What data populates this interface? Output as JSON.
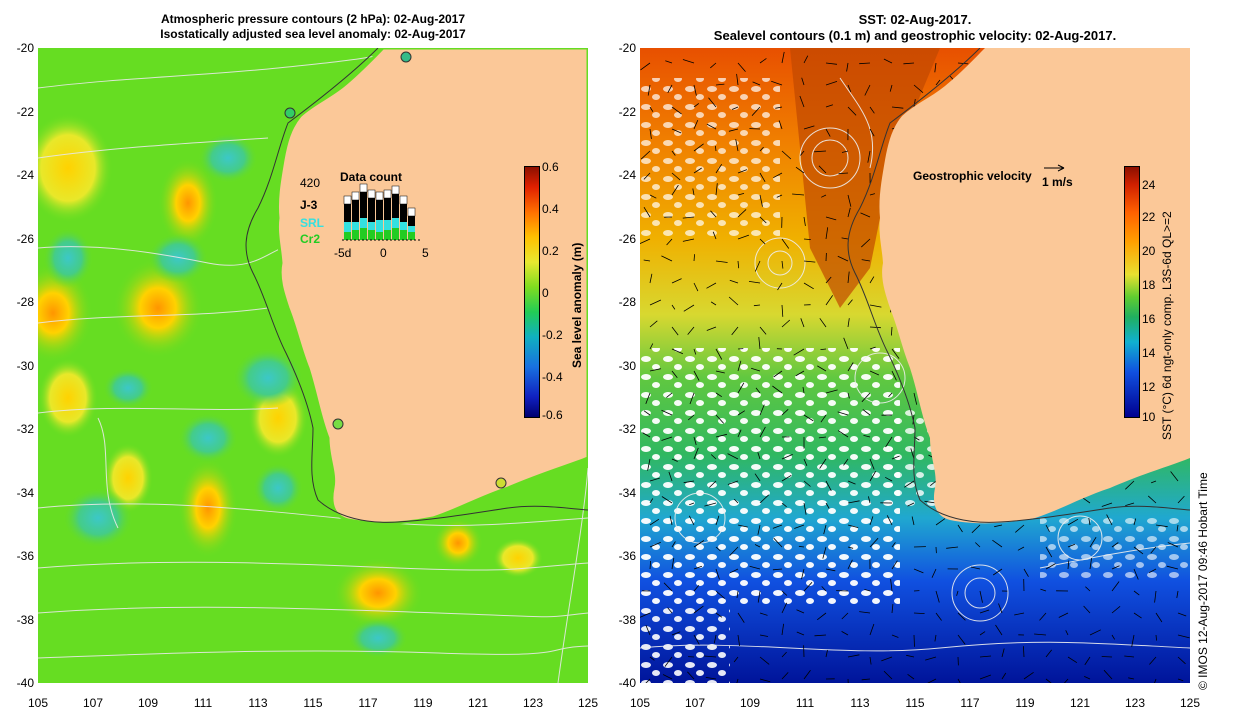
{
  "left_panel": {
    "title_line1": "Atmospheric pressure contours (2 hPa): 02-Aug-2017",
    "title_line2": "Isostatically adjusted sea level anomaly: 02-Aug-2017",
    "colorbar": {
      "label": "Sea level anomaly (m)",
      "ticks": [
        "0.6",
        "0.4",
        "0.2",
        "0",
        "-0.2",
        "-0.4",
        "-0.6"
      ]
    },
    "data_count": {
      "title": "Data count",
      "max_label": "420",
      "series": [
        {
          "name": "J-3",
          "color": "#000000"
        },
        {
          "name": "SRL",
          "color": "#33e0e0"
        },
        {
          "name": "Cr2",
          "color": "#22cc22"
        }
      ],
      "x_ticks": [
        "-5d",
        "0",
        "5"
      ]
    }
  },
  "right_panel": {
    "title_line1": "SST: 02-Aug-2017.",
    "title_line2": "Sealevel contours (0.1 m) and geostrophic velocity: 02-Aug-2017.",
    "velocity_legend": "Geostrophic velocity",
    "velocity_scale": "1 m/s",
    "colorbar": {
      "label": "SST (°C) 6d ngt-only comp. L3S-6d QL>=2",
      "ticks": [
        "24",
        "22",
        "20",
        "18",
        "16",
        "14",
        "12",
        "10"
      ]
    }
  },
  "axes": {
    "y_ticks": [
      "-20",
      "-22",
      "-24",
      "-26",
      "-28",
      "-30",
      "-32",
      "-34",
      "-36",
      "-38",
      "-40"
    ],
    "x_ticks": [
      "105",
      "107",
      "109",
      "111",
      "113",
      "115",
      "117",
      "119",
      "121",
      "123",
      "125"
    ]
  },
  "credit": "© IMOS 12-Aug-2017 09:46 Hobart Time",
  "colors": {
    "land": "#fbc898",
    "sla_base": "#66dd22",
    "sst_warm": "#d86000"
  }
}
